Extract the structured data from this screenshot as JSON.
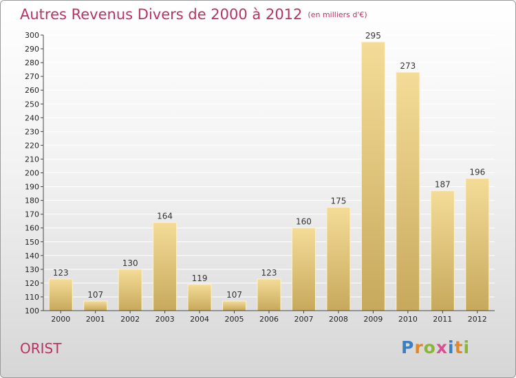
{
  "header": {
    "title": "Autres Revenus Divers de 2000 à 2012",
    "unit": "(en milliers d'€)"
  },
  "footer": {
    "commune": "ORIST",
    "logo": "Proxiti"
  },
  "colors": {
    "title": "#b83363",
    "bar_top": "#f4dc98",
    "bar_bottom": "#c7a95c",
    "grid": "#ffffff"
  },
  "chart_data": {
    "type": "bar",
    "title": "Autres Revenus Divers de 2000 à 2012",
    "xlabel": "",
    "ylabel": "",
    "categories": [
      "2000",
      "2001",
      "2002",
      "2003",
      "2004",
      "2005",
      "2006",
      "2007",
      "2008",
      "2009",
      "2010",
      "2011",
      "2012"
    ],
    "values": [
      123,
      107,
      130,
      164,
      119,
      107,
      123,
      160,
      175,
      295,
      273,
      187,
      196
    ],
    "ylim": [
      100,
      300
    ],
    "ytick_step": 10,
    "grid": true,
    "data_labels": true
  }
}
